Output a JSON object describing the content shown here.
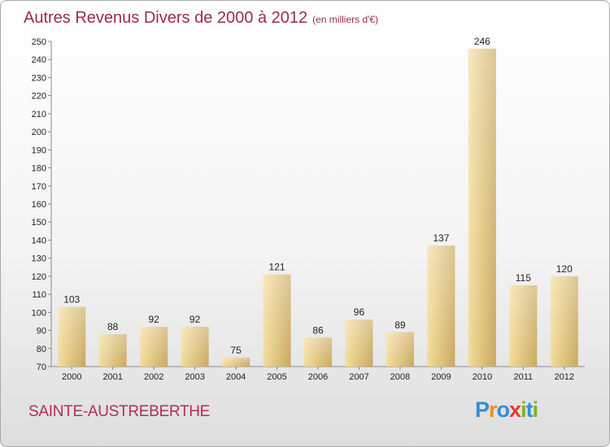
{
  "header": {
    "title": "Autres Revenus Divers de 2000 à 2012",
    "unit": "(en milliers d'€)"
  },
  "footer": {
    "place": "SAINTE-AUSTREBERTHE",
    "logo_letters": [
      "P",
      "r",
      "o",
      "x",
      "i",
      "t",
      "i"
    ],
    "logo_colors": [
      "#2f8fd8",
      "#f28c1e",
      "#2f8fd8",
      "#e23b2e",
      "#7ab51d",
      "#2f8fd8",
      "#7ab51d"
    ]
  },
  "colors": {
    "bar_light": "#f3dc9a",
    "bar_dark": "#c9a85d",
    "title": "#9b2a4e",
    "place": "#b52d57"
  },
  "chart_data": {
    "type": "bar",
    "title": "Autres Revenus Divers de 2000 à 2012",
    "subtitle": "(en milliers d'€)",
    "categories": [
      "2000",
      "2001",
      "2002",
      "2003",
      "2004",
      "2005",
      "2006",
      "2007",
      "2008",
      "2009",
      "2010",
      "2011",
      "2012"
    ],
    "values": [
      103,
      88,
      92,
      92,
      75,
      121,
      86,
      96,
      89,
      137,
      246,
      115,
      120
    ],
    "ylim": [
      70,
      250
    ],
    "yticks": [
      70,
      80,
      90,
      100,
      110,
      120,
      130,
      140,
      150,
      160,
      170,
      180,
      190,
      200,
      210,
      220,
      230,
      240,
      250
    ],
    "grid": false,
    "legend": "none"
  }
}
